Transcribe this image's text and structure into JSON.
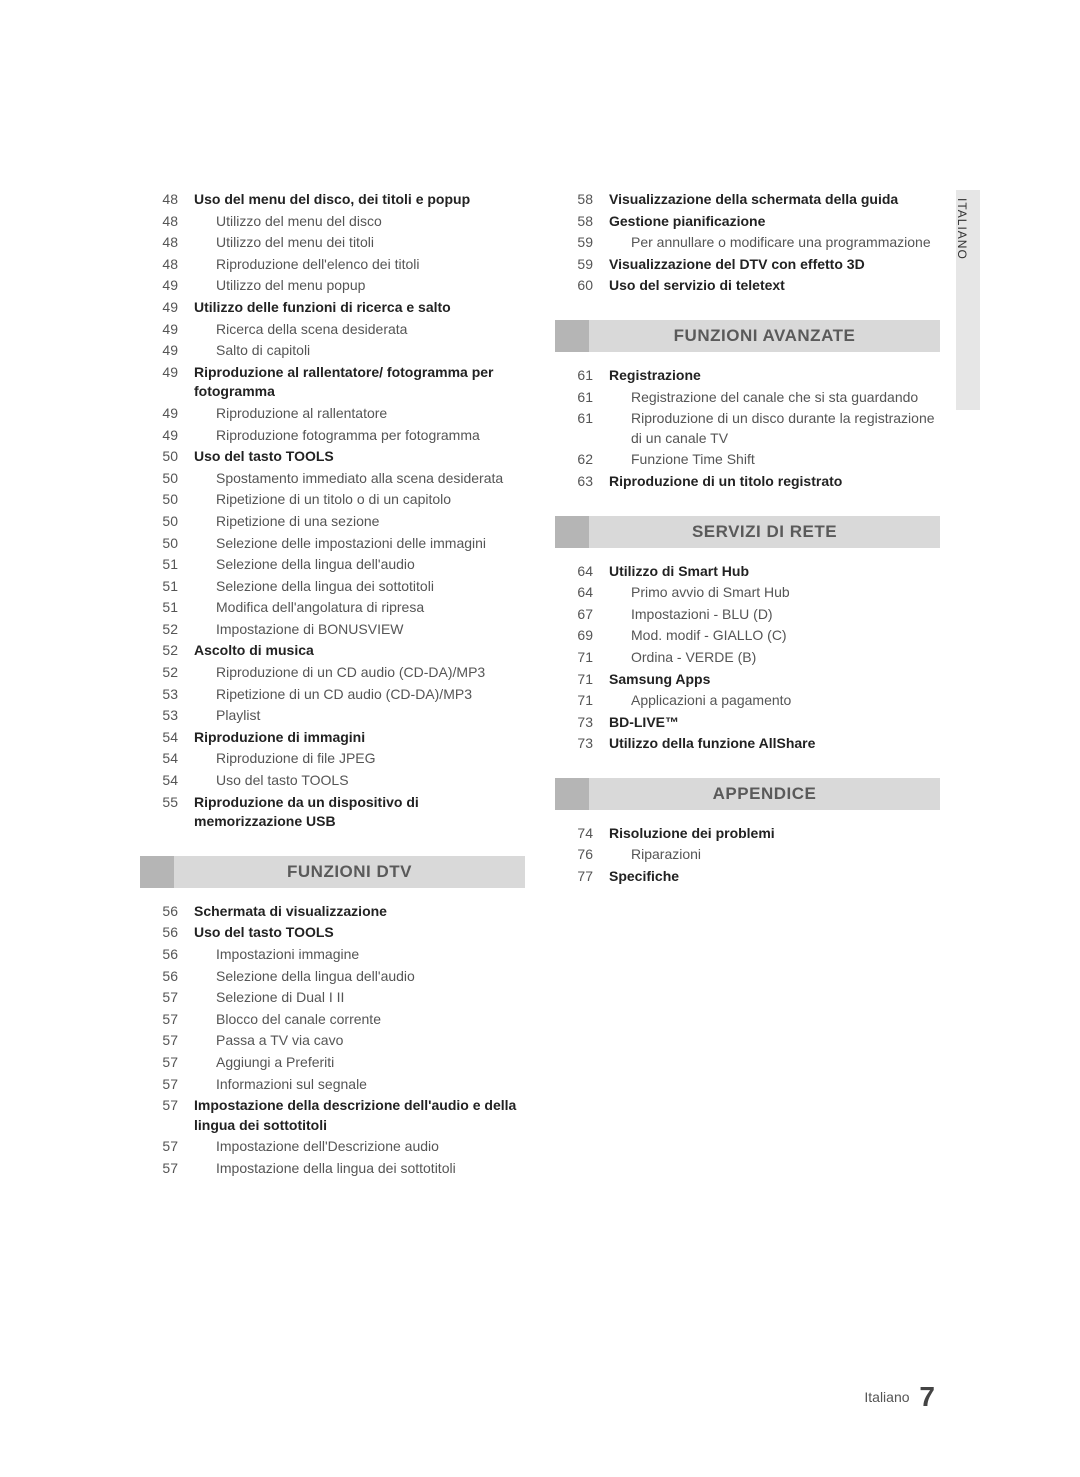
{
  "sideTab": "ITALIANO",
  "footer": {
    "lang": "Italiano",
    "page": "7"
  },
  "leftCol": {
    "block1": [
      {
        "page": "48",
        "text": "Uso del menu del disco, dei titoli e popup",
        "bold": true
      },
      {
        "page": "48",
        "text": "Utilizzo del menu del disco",
        "sub": true
      },
      {
        "page": "48",
        "text": "Utilizzo del menu dei titoli",
        "sub": true
      },
      {
        "page": "48",
        "text": "Riproduzione dell'elenco dei titoli",
        "sub": true
      },
      {
        "page": "49",
        "text": "Utilizzo del menu popup",
        "sub": true
      },
      {
        "page": "49",
        "text": "Utilizzo delle funzioni di ricerca e salto",
        "bold": true
      },
      {
        "page": "49",
        "text": "Ricerca della scena desiderata",
        "sub": true
      },
      {
        "page": "49",
        "text": "Salto di capitoli",
        "sub": true
      },
      {
        "page": "49",
        "text": "Riproduzione al rallentatore/ fotogramma per fotogramma",
        "bold": true
      },
      {
        "page": "49",
        "text": "Riproduzione al rallentatore",
        "sub": true
      },
      {
        "page": "49",
        "text": "Riproduzione fotogramma per fotogramma",
        "sub": true
      },
      {
        "page": "50",
        "text": "Uso del tasto TOOLS",
        "bold": true
      },
      {
        "page": "50",
        "text": "Spostamento immediato alla scena desiderata",
        "sub": true
      },
      {
        "page": "50",
        "text": "Ripetizione di un titolo o di un capitolo",
        "sub": true
      },
      {
        "page": "50",
        "text": "Ripetizione di una sezione",
        "sub": true
      },
      {
        "page": "50",
        "text": "Selezione delle impostazioni delle immagini",
        "sub": true
      },
      {
        "page": "51",
        "text": "Selezione della lingua dell'audio",
        "sub": true
      },
      {
        "page": "51",
        "text": "Selezione della lingua dei sottotitoli",
        "sub": true
      },
      {
        "page": "51",
        "text": "Modifica dell'angolatura di ripresa",
        "sub": true
      },
      {
        "page": "52",
        "text": "Impostazione di BONUSVIEW",
        "sub": true
      },
      {
        "page": "52",
        "text": "Ascolto di musica",
        "bold": true
      },
      {
        "page": "52",
        "text": "Riproduzione di un CD audio (CD-DA)/MP3",
        "sub": true
      },
      {
        "page": "53",
        "text": "Ripetizione di un CD audio (CD-DA)/MP3",
        "sub": true
      },
      {
        "page": "53",
        "text": "Playlist",
        "sub": true
      },
      {
        "page": "54",
        "text": "Riproduzione di immagini",
        "bold": true
      },
      {
        "page": "54",
        "text": "Riproduzione di file JPEG",
        "sub": true
      },
      {
        "page": "54",
        "text": "Uso del tasto TOOLS",
        "sub": true
      },
      {
        "page": "55",
        "text": "Riproduzione da un dispositivo di memorizzazione USB",
        "bold": true
      }
    ],
    "section1": "FUNZIONI DTV",
    "block2": [
      {
        "page": "56",
        "text": "Schermata di visualizzazione",
        "bold": true
      },
      {
        "page": "56",
        "text": "Uso del tasto TOOLS",
        "bold": true
      },
      {
        "page": "56",
        "text": "Impostazioni immagine",
        "sub": true
      },
      {
        "page": "56",
        "text": "Selezione della lingua dell'audio",
        "sub": true
      },
      {
        "page": "57",
        "text": "Selezione di Dual I II",
        "sub": true
      },
      {
        "page": "57",
        "text": "Blocco del canale corrente",
        "sub": true
      },
      {
        "page": "57",
        "text": "Passa a TV via cavo",
        "sub": true
      },
      {
        "page": "57",
        "text": "Aggiungi a Preferiti",
        "sub": true
      },
      {
        "page": "57",
        "text": "Informazioni sul segnale",
        "sub": true
      },
      {
        "page": "57",
        "text": "Impostazione della descrizione dell'audio e della lingua dei sottotitoli",
        "bold": true
      },
      {
        "page": "57",
        "text": "Impostazione dell'Descrizione audio",
        "sub": true
      },
      {
        "page": "57",
        "text": "Impostazione della lingua dei sottotitoli",
        "sub": true
      }
    ]
  },
  "rightCol": {
    "block1": [
      {
        "page": "58",
        "text": "Visualizzazione della schermata della guida",
        "bold": true
      },
      {
        "page": "58",
        "text": "Gestione pianificazione",
        "bold": true
      },
      {
        "page": "59",
        "text": "Per annullare o modificare una programmazione",
        "sub": true
      },
      {
        "page": "59",
        "text": "Visualizzazione del DTV con effetto 3D",
        "bold": true
      },
      {
        "page": "60",
        "text": "Uso del servizio di teletext",
        "bold": true
      }
    ],
    "section1": "FUNZIONI AVANZATE",
    "block2": [
      {
        "page": "61",
        "text": "Registrazione",
        "bold": true
      },
      {
        "page": "61",
        "text": "Registrazione del canale che si sta guardando",
        "sub": true
      },
      {
        "page": "61",
        "text": "Riproduzione di un disco durante la registrazione di un canale TV",
        "sub": true
      },
      {
        "page": "62",
        "text": "Funzione Time Shift",
        "sub": true
      },
      {
        "page": "63",
        "text": "Riproduzione di un titolo registrato",
        "bold": true
      }
    ],
    "section2": "SERVIZI DI RETE",
    "block3": [
      {
        "page": "64",
        "text": "Utilizzo di Smart Hub",
        "bold": true
      },
      {
        "page": "64",
        "text": "Primo avvio di Smart Hub",
        "sub": true
      },
      {
        "page": "67",
        "text": "Impostazioni - BLU (D)",
        "sub": true
      },
      {
        "page": "69",
        "text": "Mod. modif - GIALLO (C)",
        "sub": true
      },
      {
        "page": "71",
        "text": "Ordina - VERDE (B)",
        "sub": true
      },
      {
        "page": "71",
        "text": "Samsung Apps",
        "bold": true
      },
      {
        "page": "71",
        "text": "Applicazioni a pagamento",
        "sub": true
      },
      {
        "page": "73",
        "text": "BD-LIVE™",
        "bold": true
      },
      {
        "page": "73",
        "text": "Utilizzo della funzione AllShare",
        "bold": true
      }
    ],
    "section3": "APPENDICE",
    "block4": [
      {
        "page": "74",
        "text": "Risoluzione dei problemi",
        "bold": true
      },
      {
        "page": "76",
        "text": "Riparazioni",
        "sub": true
      },
      {
        "page": "77",
        "text": "Specifiche",
        "bold": true
      }
    ]
  }
}
